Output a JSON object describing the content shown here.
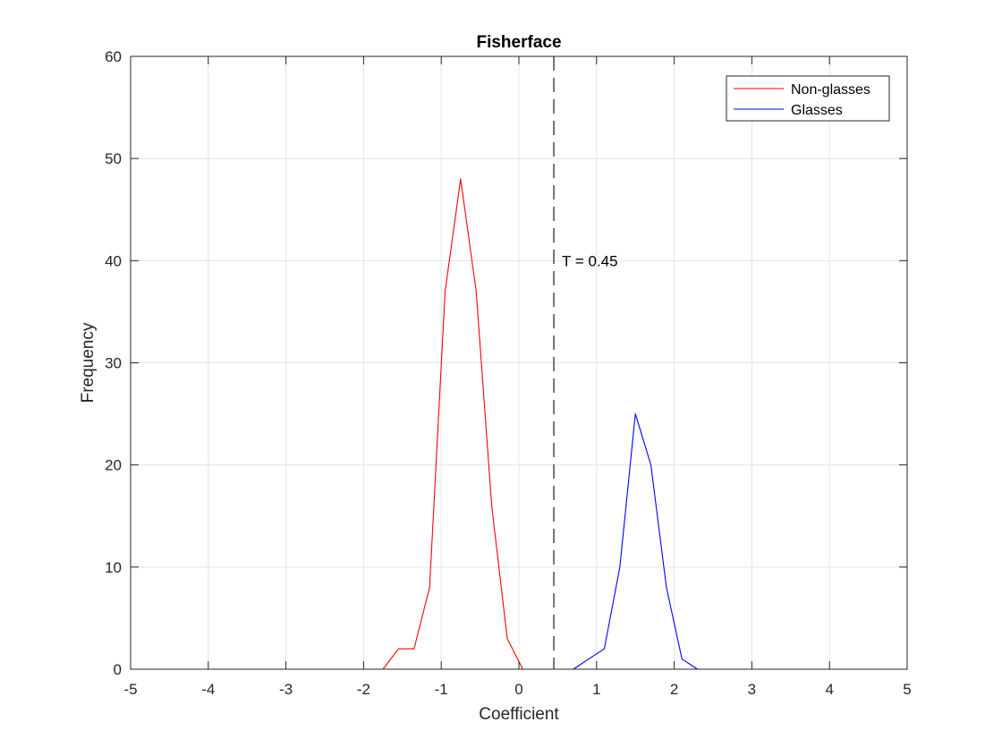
{
  "chart_data": {
    "type": "line",
    "title": "Fisherface",
    "xlabel": "Coefficient",
    "ylabel": "Frequency",
    "xlim": [
      -5,
      5
    ],
    "ylim": [
      0,
      60
    ],
    "xticks": [
      -5,
      -4,
      -3,
      -2,
      -1,
      0,
      1,
      2,
      3,
      4,
      5
    ],
    "yticks": [
      0,
      10,
      20,
      30,
      40,
      50,
      60
    ],
    "grid": true,
    "legend_position": "top-right",
    "series": [
      {
        "name": "Non-glasses",
        "color": "#ff0000",
        "x": [
          -5,
          -1.75,
          -1.55,
          -1.35,
          -1.15,
          -0.95,
          -0.75,
          -0.55,
          -0.35,
          -0.15,
          0.05,
          5
        ],
        "y": [
          0,
          0,
          2,
          2,
          8,
          37,
          48,
          37,
          16,
          3,
          0,
          0
        ]
      },
      {
        "name": "Glasses",
        "color": "#0000ff",
        "x": [
          -5,
          0.7,
          0.9,
          1.1,
          1.3,
          1.5,
          1.7,
          1.9,
          2.1,
          2.3,
          5
        ],
        "y": [
          0,
          0,
          1,
          2,
          10,
          25,
          20,
          8,
          1,
          0,
          0
        ]
      }
    ],
    "threshold": {
      "x": 0.45,
      "color": "#000000",
      "label": "T = 0.45",
      "label_y": 40
    }
  }
}
